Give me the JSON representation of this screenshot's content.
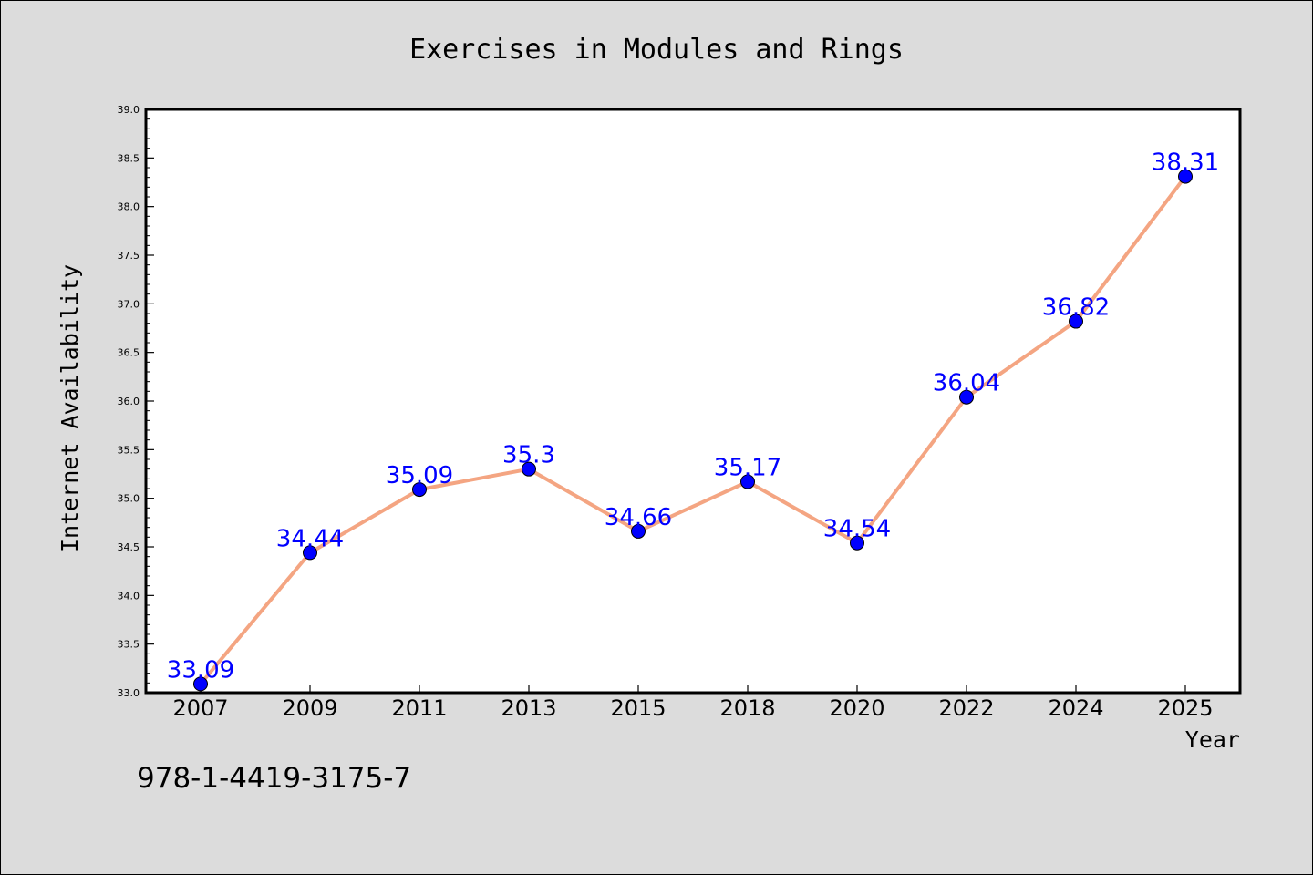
{
  "figure": {
    "background": "#dcdcdc",
    "plot_background": "#ffffff",
    "footer_text": "978-1-4419-3175-7"
  },
  "chart_data": {
    "type": "line",
    "title": "Exercises in Modules and Rings",
    "xlabel": "Year",
    "ylabel": "Internet Availability",
    "categories": [
      "2007",
      "2009",
      "2011",
      "2013",
      "2015",
      "2018",
      "2020",
      "2022",
      "2024",
      "2025"
    ],
    "series": [
      {
        "values": [
          33.09,
          34.44,
          35.09,
          35.3,
          34.66,
          35.17,
          34.54,
          36.04,
          36.82,
          38.31
        ],
        "labels": [
          "33.09",
          "34.44",
          "35.09",
          "35.3",
          "34.66",
          "35.17",
          "34.54",
          "36.04",
          "36.82",
          "38.31"
        ],
        "line_color": "#f4a582",
        "marker_color": "#0000ff",
        "label_color": "#0000ff"
      }
    ],
    "ylim": [
      33.0,
      39.0
    ],
    "yticks": [
      33.0,
      33.5,
      34.0,
      34.5,
      35.0,
      35.5,
      36.0,
      36.5,
      37.0,
      37.5,
      38.0,
      38.5,
      39.0
    ],
    "ytick_labels": [
      "33.0",
      "33.5",
      "34.0",
      "34.5",
      "35.0",
      "35.5",
      "36.0",
      "36.5",
      "37.0",
      "37.5",
      "38.0",
      "38.5",
      "39.0"
    ],
    "grid": false,
    "legend": "none"
  }
}
